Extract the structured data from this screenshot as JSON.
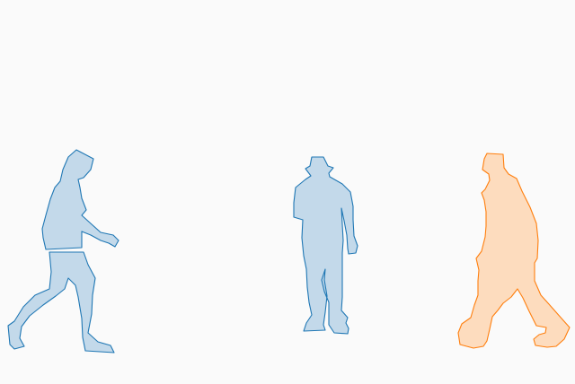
{
  "scene": {
    "background_color": "#fafafa",
    "figures": [
      {
        "name": "walking-person-silhouette",
        "fill": "#c3d9ea",
        "stroke": "#1f77b4"
      },
      {
        "name": "standing-person-silhouette",
        "fill": "#c3d9ea",
        "stroke": "#1f77b4"
      },
      {
        "name": "striding-person-silhouette",
        "fill": "#fddcbe",
        "stroke": "#ff7f0e"
      }
    ]
  }
}
